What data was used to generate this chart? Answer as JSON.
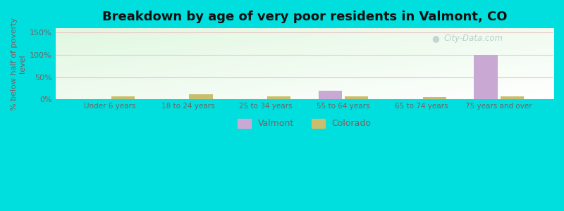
{
  "title": "Breakdown by age of very poor residents in Valmont, CO",
  "ylabel": "% below half of poverty\nlevel",
  "categories": [
    "Under 6 years",
    "18 to 24 years",
    "25 to 34 years",
    "55 to 64 years",
    "65 to 74 years",
    "75 years and over"
  ],
  "valmont_values": [
    0,
    0,
    0,
    20,
    0,
    100
  ],
  "colorado_values": [
    7,
    12,
    6,
    6,
    5,
    6
  ],
  "valmont_color": "#c9a8d4",
  "colorado_color": "#c8be6e",
  "ylim": [
    0,
    160
  ],
  "yticks": [
    0,
    50,
    100,
    150
  ],
  "ytick_labels": [
    "0%",
    "50%",
    "100%",
    "150%"
  ],
  "bar_width": 0.3,
  "title_fontsize": 13,
  "label_color": "#7a6060",
  "grid_color": "#e8c8c8",
  "watermark": "City-Data.com",
  "outer_bg": "#00dede",
  "plot_bg_left": "#f2fff2",
  "plot_bg_right": "#d8f0e8"
}
